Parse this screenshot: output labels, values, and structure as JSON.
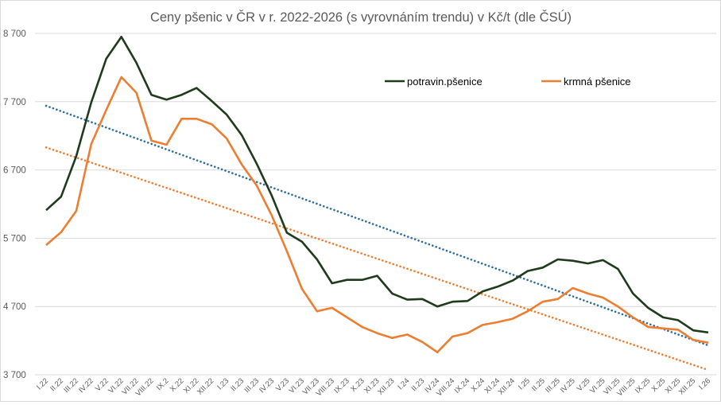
{
  "chart_data": {
    "type": "line",
    "title": "Ceny pšenic v ČR v r. 2022-2026 (s vyrovnáním trendu) v Kč/t (dle ČSÚ)",
    "xlabel": "",
    "ylabel": "",
    "ylim": [
      3700,
      8700
    ],
    "yticks": [
      3700,
      4700,
      5700,
      6700,
      7700,
      8700
    ],
    "ytick_labels": [
      "3 700",
      "4 700",
      "5 700",
      "6 700",
      "7 700",
      "8 700"
    ],
    "grid": true,
    "legend_position": "top-right",
    "categories": [
      "I.22",
      "II.22",
      "III.22",
      "IV.22",
      "V.22",
      "VI.22",
      "VII.22",
      "VIII.22",
      "IX.2",
      "X.22",
      "XI.22",
      "XII.22",
      "I.23",
      "II.23",
      "III.23",
      "IV.23",
      "V.23",
      "VI.23",
      "VII.23",
      "VIII.23",
      "IX.23",
      "X.23",
      "XI.23",
      "XII.23",
      "I.24",
      "II.23",
      "IV.24",
      "VIII.24",
      "IX.24",
      "X.24",
      "XI.24",
      "XII.24",
      "I.25",
      "II.25",
      "III.25",
      "IV.25",
      "V.25",
      "VI.25",
      "VII.25",
      "VIII.25",
      "IX.25",
      "X.25",
      "XI.25",
      "XII.25",
      "I.26"
    ],
    "series": [
      {
        "name": "potravin.pšenice",
        "color": "#1f3b1c",
        "values": [
          6110,
          6310,
          6900,
          7690,
          8330,
          8650,
          8270,
          7800,
          7730,
          7800,
          7900,
          7710,
          7510,
          7210,
          6790,
          6320,
          5780,
          5650,
          5390,
          5040,
          5090,
          5090,
          5150,
          4890,
          4800,
          4810,
          4700,
          4770,
          4780,
          4920,
          4990,
          5080,
          5220,
          5270,
          5390,
          5370,
          5330,
          5380,
          5250,
          4890,
          4680,
          4540,
          4500,
          4350,
          4320
        ]
      },
      {
        "name": "krmná pšenice",
        "color": "#ed7d31",
        "values": [
          5600,
          5790,
          6100,
          7080,
          7580,
          8060,
          7830,
          7130,
          7070,
          7450,
          7450,
          7370,
          7160,
          6780,
          6470,
          6030,
          5510,
          4960,
          4630,
          4680,
          4540,
          4400,
          4310,
          4240,
          4290,
          4180,
          4030,
          4260,
          4310,
          4430,
          4470,
          4520,
          4630,
          4770,
          4810,
          4970,
          4890,
          4830,
          4700,
          4540,
          4400,
          4380,
          4360,
          4210,
          4170
        ]
      }
    ],
    "trendlines": [
      {
        "series": "potravin.pšenice",
        "type": "linear",
        "color": "#2e6f9a",
        "start": 7640,
        "end": 4130
      },
      {
        "series": "krmná pšenice",
        "type": "linear",
        "color": "#ed7d31",
        "start": 7030,
        "end": 3770
      }
    ]
  }
}
